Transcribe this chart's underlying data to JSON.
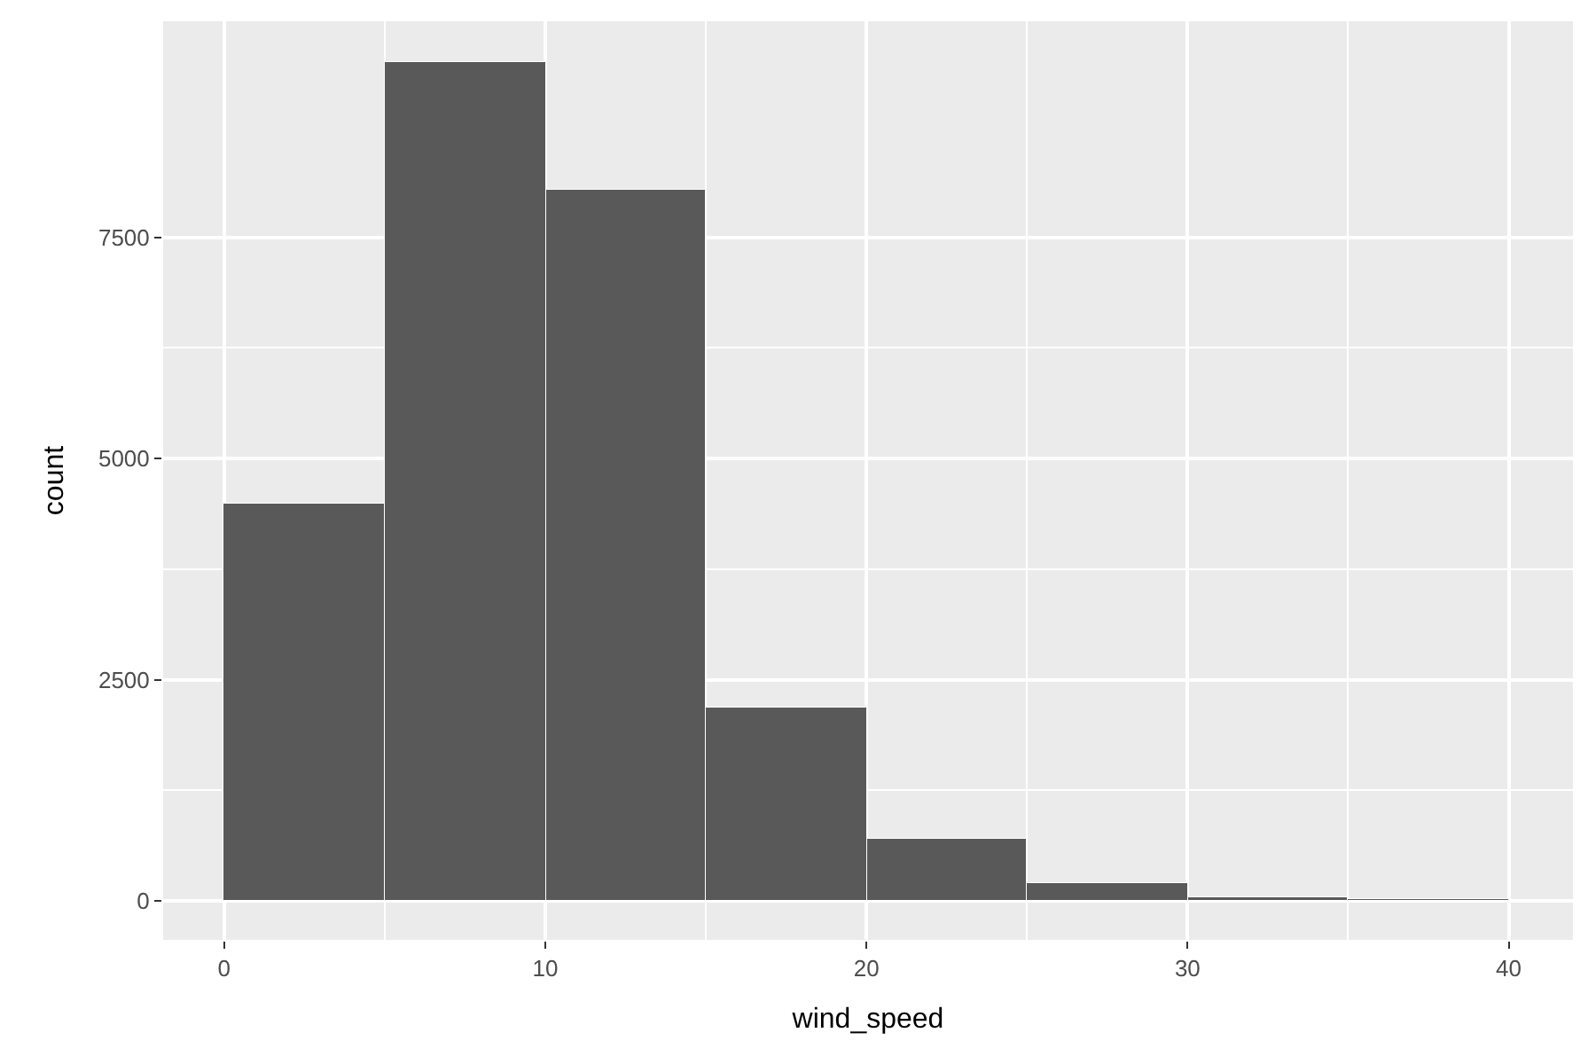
{
  "chart_data": {
    "type": "histogram",
    "xlabel": "wind_speed",
    "ylabel": "count",
    "bins": [
      0,
      5,
      10,
      15,
      20,
      25,
      30,
      35,
      40
    ],
    "values": [
      4480,
      9470,
      8030,
      2190,
      700,
      200,
      40,
      20
    ],
    "color": "#595959",
    "xlim": [
      -1.9,
      42
    ],
    "ylim": [
      -440,
      9940
    ],
    "xticks": [
      0,
      10,
      20,
      30,
      40
    ],
    "yticks": [
      0,
      2500,
      5000,
      7500
    ],
    "grid": true
  }
}
